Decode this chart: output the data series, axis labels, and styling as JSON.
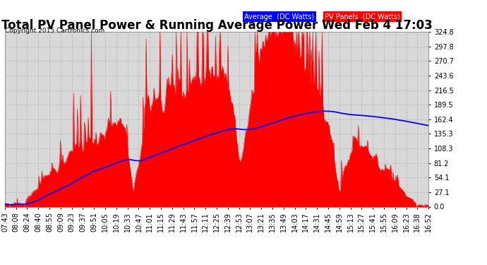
{
  "title": "Total PV Panel Power & Running Average Power Wed Feb 4 17:03",
  "copyright": "Copyright 2015 Cartronics.com",
  "legend_avg": "Average  (DC Watts)",
  "legend_pv": "PV Panels  (DC Watts)",
  "yticks": [
    0.0,
    27.1,
    54.1,
    81.2,
    108.3,
    135.3,
    162.4,
    189.5,
    216.5,
    243.6,
    270.7,
    297.8,
    324.8
  ],
  "xtick_labels": [
    "07:43",
    "08:08",
    "08:24",
    "08:40",
    "08:55",
    "09:09",
    "09:23",
    "09:37",
    "09:51",
    "10:05",
    "10:19",
    "10:33",
    "10:47",
    "11:01",
    "11:15",
    "11:29",
    "11:43",
    "11:57",
    "12:11",
    "12:25",
    "12:39",
    "12:53",
    "13:07",
    "13:21",
    "13:35",
    "13:49",
    "14:03",
    "14:17",
    "14:31",
    "14:45",
    "14:59",
    "15:13",
    "15:27",
    "15:41",
    "15:55",
    "16:09",
    "16:23",
    "16:38",
    "16:52"
  ],
  "bg_color": "#ffffff",
  "plot_bg_color": "#d8d8d8",
  "grid_color": "#bbbbbb",
  "pv_color": "#ff0000",
  "avg_color": "#0000ff",
  "title_fontsize": 12,
  "tick_fontsize": 7,
  "ymax": 324.8,
  "n_points": 550
}
